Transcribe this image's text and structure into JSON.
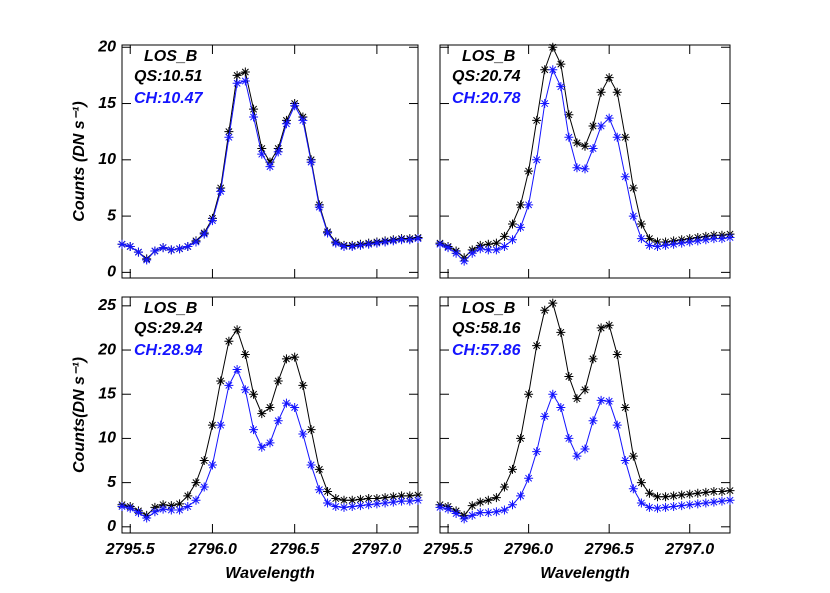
{
  "chart_data": [
    {
      "type": "line",
      "annotation": "LOS_B",
      "x": [
        2795.45,
        2795.5,
        2795.55,
        2795.6,
        2795.65,
        2795.7,
        2795.75,
        2795.8,
        2795.85,
        2795.9,
        2795.95,
        2796,
        2796.05,
        2796.1,
        2796.15,
        2796.2,
        2796.25,
        2796.3,
        2796.35,
        2796.4,
        2796.45,
        2796.5,
        2796.55,
        2796.6,
        2796.65,
        2796.7,
        2796.75,
        2796.8,
        2796.85,
        2796.9,
        2796.95,
        2797,
        2797.05,
        2797.1,
        2797.15,
        2797.2,
        2797.25
      ],
      "series": [
        {
          "name": "QS:10.51",
          "color": "#000000",
          "values": [
            2.5,
            2.3,
            1.8,
            1.2,
            1.9,
            2.2,
            2.0,
            2.1,
            2.3,
            2.8,
            3.5,
            4.8,
            7.5,
            12.5,
            17.5,
            17.8,
            14.5,
            11.0,
            9.8,
            11.0,
            13.5,
            15.0,
            13.8,
            10.0,
            6.0,
            3.6,
            2.7,
            2.4,
            2.4,
            2.5,
            2.6,
            2.7,
            2.8,
            2.9,
            3.0,
            3.0,
            3.1
          ]
        },
        {
          "name": "CH:10.47",
          "color": "#1414ff",
          "values": [
            2.5,
            2.3,
            1.8,
            1.1,
            1.9,
            2.2,
            2.0,
            2.1,
            2.3,
            2.7,
            3.4,
            4.6,
            7.2,
            12.0,
            16.8,
            17.0,
            13.8,
            10.5,
            9.4,
            10.7,
            13.2,
            14.8,
            13.5,
            9.8,
            5.8,
            3.5,
            2.6,
            2.3,
            2.3,
            2.4,
            2.5,
            2.6,
            2.7,
            2.8,
            2.9,
            2.9,
            3.0
          ]
        }
      ],
      "ylabel": "Counts (DN s⁻¹)",
      "xlim": [
        2795.45,
        2797.25
      ],
      "xticks": [
        2795.5,
        2796,
        2796.5,
        2797
      ],
      "ylim": [
        -0.5,
        20.2
      ],
      "yticks": [
        0,
        5,
        10,
        15,
        20
      ]
    },
    {
      "type": "line",
      "annotation": "LOS_B",
      "x": [
        2795.45,
        2795.5,
        2795.55,
        2795.6,
        2795.65,
        2795.7,
        2795.75,
        2795.8,
        2795.85,
        2795.9,
        2795.95,
        2796,
        2796.05,
        2796.1,
        2796.15,
        2796.2,
        2796.25,
        2796.3,
        2796.35,
        2796.4,
        2796.45,
        2796.5,
        2796.55,
        2796.6,
        2796.65,
        2796.7,
        2796.75,
        2796.8,
        2796.85,
        2796.9,
        2796.95,
        2797,
        2797.05,
        2797.1,
        2797.15,
        2797.2,
        2797.25
      ],
      "series": [
        {
          "name": "QS:20.74",
          "color": "#000000",
          "values": [
            2.6,
            2.3,
            1.9,
            1.3,
            2.0,
            2.4,
            2.5,
            2.6,
            3.2,
            4.3,
            6.0,
            9.0,
            13.5,
            18.0,
            20.0,
            18.5,
            14.0,
            11.5,
            11.2,
            13.0,
            16.0,
            17.3,
            16.0,
            12.0,
            7.5,
            4.3,
            3.0,
            2.7,
            2.7,
            2.8,
            2.9,
            3.0,
            3.1,
            3.2,
            3.3,
            3.3,
            3.4
          ]
        },
        {
          "name": "CH:20.78",
          "color": "#1414ff",
          "values": [
            2.5,
            2.2,
            1.7,
            1.0,
            1.7,
            2.1,
            2.0,
            2.0,
            2.3,
            2.9,
            4.0,
            6.0,
            10.0,
            15.0,
            18.0,
            16.5,
            12.0,
            9.3,
            9.2,
            11.0,
            13.0,
            13.7,
            12.0,
            8.5,
            5.0,
            3.0,
            2.4,
            2.3,
            2.4,
            2.5,
            2.6,
            2.7,
            2.8,
            2.9,
            3.0,
            3.0,
            3.1
          ]
        }
      ],
      "xlim": [
        2795.45,
        2797.25
      ],
      "xticks": [
        2795.5,
        2796,
        2796.5,
        2797
      ],
      "ylim": [
        -0.5,
        20.2
      ],
      "yticks": [
        0,
        5,
        10,
        15,
        20
      ]
    },
    {
      "type": "line",
      "annotation": "LOS_B",
      "x": [
        2795.45,
        2795.5,
        2795.55,
        2795.6,
        2795.65,
        2795.7,
        2795.75,
        2795.8,
        2795.85,
        2795.9,
        2795.95,
        2796,
        2796.05,
        2796.1,
        2796.15,
        2796.2,
        2796.25,
        2796.3,
        2796.35,
        2796.4,
        2796.45,
        2796.5,
        2796.55,
        2796.6,
        2796.65,
        2796.7,
        2796.75,
        2796.8,
        2796.85,
        2796.9,
        2796.95,
        2797,
        2797.05,
        2797.1,
        2797.15,
        2797.2,
        2797.25
      ],
      "series": [
        {
          "name": "QS:29.24",
          "color": "#000000",
          "values": [
            2.5,
            2.3,
            1.8,
            1.3,
            2.2,
            2.5,
            2.4,
            2.6,
            3.5,
            5.0,
            7.5,
            11.5,
            16.5,
            21.0,
            22.3,
            19.5,
            15.0,
            12.8,
            13.5,
            16.5,
            19.0,
            19.2,
            16.0,
            11.0,
            6.5,
            4.0,
            3.2,
            3.0,
            3.0,
            3.1,
            3.2,
            3.2,
            3.3,
            3.4,
            3.5,
            3.5,
            3.6
          ]
        },
        {
          "name": "CH:28.94",
          "color": "#1414ff",
          "values": [
            2.3,
            2.1,
            1.6,
            1.0,
            1.7,
            2.0,
            1.9,
            1.9,
            2.3,
            3.0,
            4.5,
            7.0,
            11.5,
            16.0,
            17.8,
            15.5,
            11.0,
            9.0,
            9.5,
            12.0,
            14.0,
            13.5,
            10.5,
            7.0,
            4.2,
            2.7,
            2.3,
            2.2,
            2.3,
            2.4,
            2.5,
            2.6,
            2.7,
            2.8,
            2.9,
            2.9,
            3.0
          ]
        }
      ],
      "ylabel": "Counts(DN s⁻¹)",
      "xlabel": "Wavelength",
      "xlim": [
        2795.45,
        2797.25
      ],
      "xticks": [
        2795.5,
        {
          "value": 2796,
          "label": "2796.0"
        },
        2796.5,
        {
          "value": 2797,
          "label": "2797.0"
        }
      ],
      "ylim": [
        -0.7,
        26
      ],
      "yticks": [
        0,
        5,
        10,
        15,
        20,
        25
      ]
    },
    {
      "type": "line",
      "annotation": "LOS_B",
      "x": [
        2795.45,
        2795.5,
        2795.55,
        2795.6,
        2795.65,
        2795.7,
        2795.75,
        2795.8,
        2795.85,
        2795.9,
        2795.95,
        2796,
        2796.05,
        2796.1,
        2796.15,
        2796.2,
        2796.25,
        2796.3,
        2796.35,
        2796.4,
        2796.45,
        2796.5,
        2796.55,
        2796.6,
        2796.65,
        2796.7,
        2796.75,
        2796.8,
        2796.85,
        2796.9,
        2796.95,
        2797,
        2797.05,
        2797.1,
        2797.15,
        2797.2,
        2797.25
      ],
      "series": [
        {
          "name": "QS:58.16",
          "color": "#000000",
          "values": [
            2.5,
            2.3,
            1.8,
            1.3,
            2.4,
            2.8,
            3.0,
            3.3,
            4.5,
            6.5,
            10.0,
            15.0,
            20.5,
            24.5,
            25.3,
            22.0,
            17.0,
            14.5,
            15.5,
            19.0,
            22.5,
            22.8,
            19.5,
            13.5,
            8.0,
            5.0,
            3.8,
            3.4,
            3.4,
            3.5,
            3.6,
            3.7,
            3.8,
            3.9,
            4.0,
            4.0,
            4.1
          ]
        },
        {
          "name": "CH:57.86",
          "color": "#1414ff",
          "values": [
            2.2,
            2.0,
            1.5,
            0.9,
            1.3,
            1.6,
            1.6,
            1.7,
            1.9,
            2.5,
            3.5,
            5.5,
            8.5,
            12.5,
            15.0,
            13.5,
            10.0,
            8.0,
            8.8,
            12.0,
            14.3,
            14.2,
            11.5,
            7.5,
            4.3,
            2.7,
            2.2,
            2.1,
            2.2,
            2.3,
            2.4,
            2.5,
            2.6,
            2.7,
            2.8,
            2.9,
            3.0
          ]
        }
      ],
      "xlabel": "Wavelength",
      "xlim": [
        2795.45,
        2797.25
      ],
      "xticks": [
        2795.5,
        {
          "value": 2796,
          "label": "2796.0"
        },
        2796.5,
        {
          "value": 2797,
          "label": "2797.0"
        }
      ],
      "ylim": [
        -0.7,
        26
      ],
      "yticks": [
        0,
        5,
        10,
        15,
        20,
        25
      ]
    }
  ]
}
